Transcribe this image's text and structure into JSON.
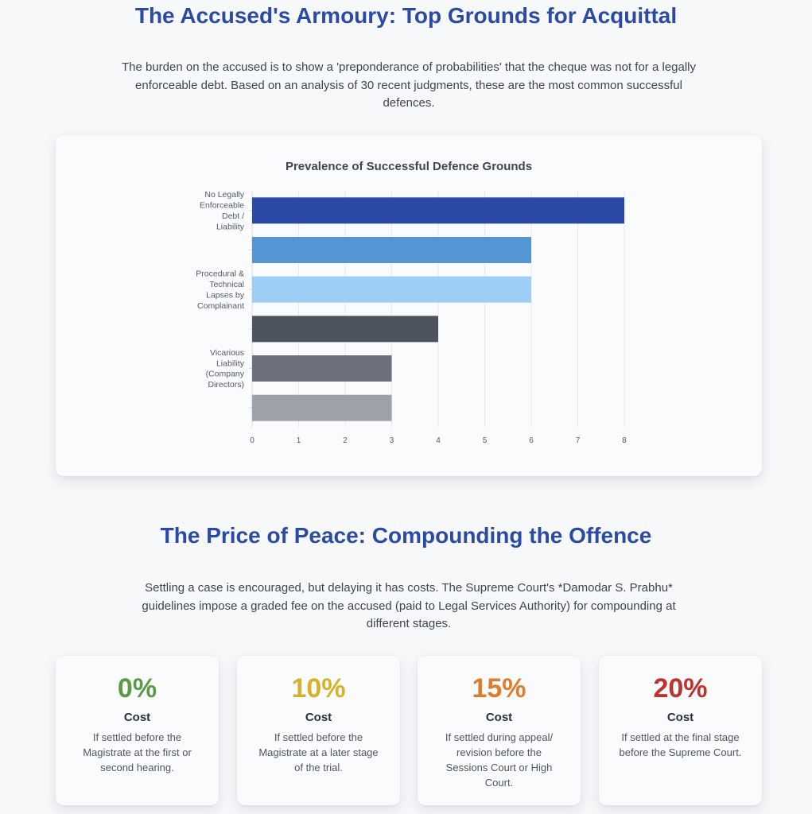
{
  "section1": {
    "title": "The Accused's Armoury: Top Grounds for Acquittal",
    "intro": "The burden on the accused is to show a 'preponderance of probabilities' that the cheque was not for a legally enforceable debt. Based on an analysis of 30 recent judgments, these are the most common successful defences."
  },
  "chart_data": {
    "type": "bar",
    "orientation": "horizontal",
    "title": "Prevalence of Successful Defence Grounds",
    "categories": [
      "No Legally Enforceable Debt / Liability",
      "",
      "Procedural & Technical Lapses by Complainant",
      "",
      "Vicarious Liability (Company Directors)",
      ""
    ],
    "category_label_lines": [
      [
        "No Legally",
        "Enforceable",
        "Debt /",
        "Liability"
      ],
      [],
      [
        "Procedural &",
        "Technical",
        "Lapses by",
        "Complainant"
      ],
      [],
      [
        "Vicarious",
        "Liability",
        "(Company",
        "Directors)"
      ],
      []
    ],
    "values": [
      8,
      6,
      6,
      4,
      3,
      3
    ],
    "colors": [
      "#2a4aa6",
      "#5496d4",
      "#9ecdf6",
      "#4e5360",
      "#6b707b",
      "#9ca1aa"
    ],
    "xlim": [
      0,
      8
    ],
    "ticks": [
      "0",
      "1",
      "2",
      "3",
      "4",
      "5",
      "6",
      "7",
      "8"
    ],
    "grid": true,
    "xlabel": "",
    "ylabel": ""
  },
  "section2": {
    "title": "The Price of Peace: Compounding the Offence",
    "intro": "Settling a case is encouraged, but delaying it has costs. The Supreme Court's *Damodar S. Prabhu* guidelines impose a graded fee on the accused (paid to Legal Services Authority) for compounding at different stages."
  },
  "stats": [
    {
      "value": "0%",
      "label": "Cost",
      "desc": "If settled before the Magistrate at the first or second hearing.",
      "color": "#5a9a45"
    },
    {
      "value": "10%",
      "label": "Cost",
      "desc": "If settled before the Magistrate at a later stage of the trial.",
      "color": "#d6b22b"
    },
    {
      "value": "15%",
      "label": "Cost",
      "desc": "If settled during appeal/ revision before the Sessions Court or High Court.",
      "color": "#e07b2b"
    },
    {
      "value": "20%",
      "label": "Cost",
      "desc": "If settled at the final stage before the Supreme Court.",
      "color": "#c0322e"
    }
  ]
}
